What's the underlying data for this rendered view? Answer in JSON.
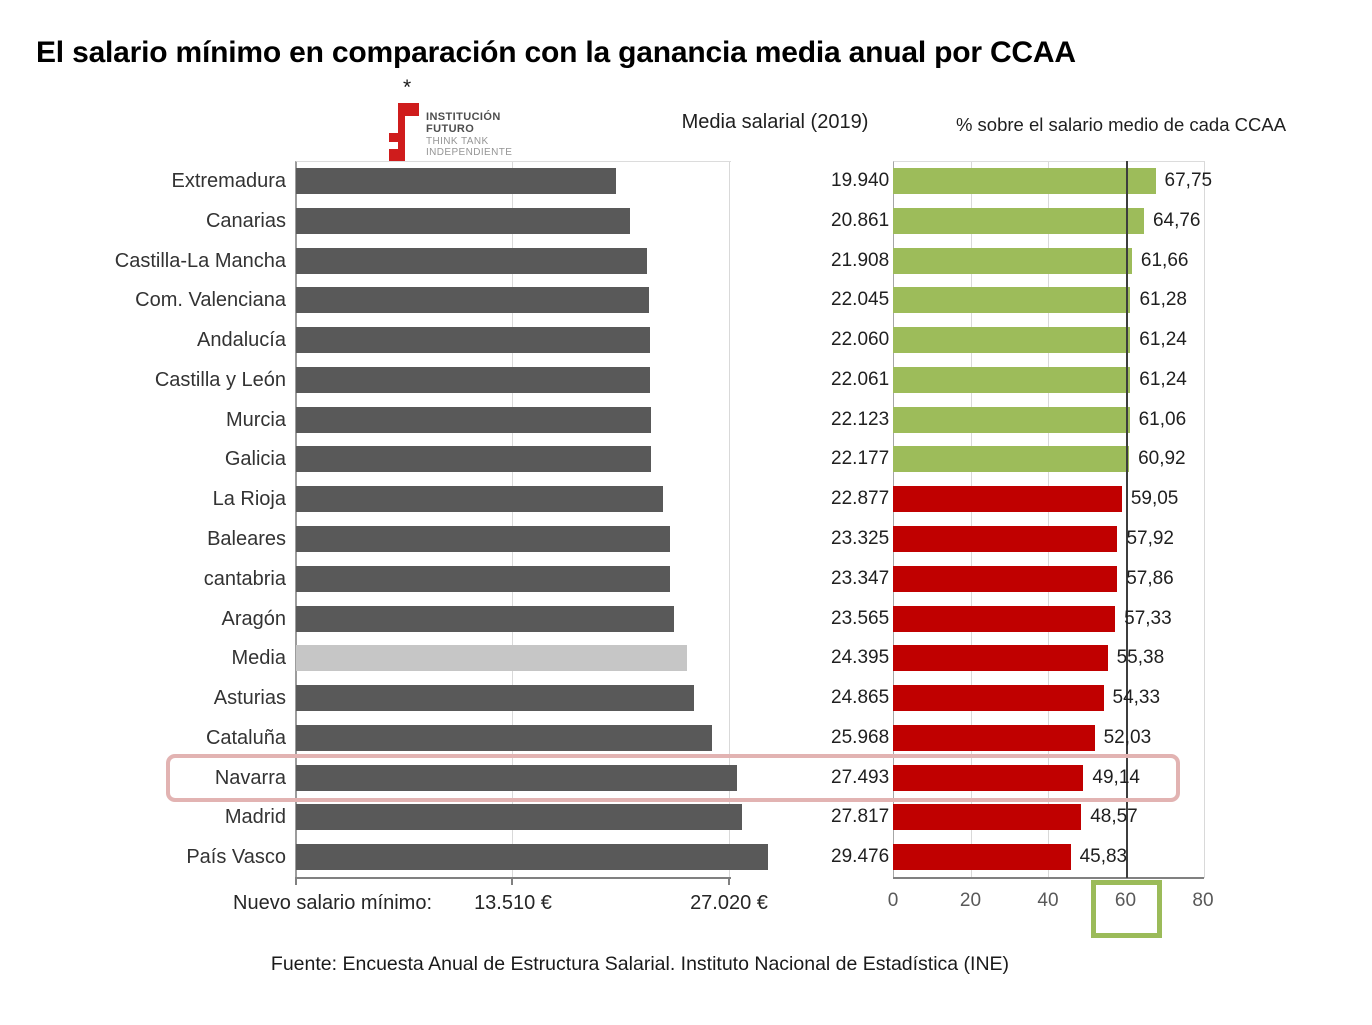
{
  "title": "El salario mínimo en comparación con la ganancia media anual por CCAA",
  "logo": {
    "asterisk": "*",
    "lines": [
      "INSTITUCIÓN",
      "FUTURO",
      "THINK TANK",
      "INDEPENDIENTE"
    ]
  },
  "headers": {
    "salary": "Media salarial (2019)",
    "percent": "% sobre el salario medio de cada CCAA"
  },
  "chart_data": {
    "type": "bar",
    "orientation": "horizontal",
    "categories": [
      "Extremadura",
      "Canarias",
      "Castilla-La Mancha",
      "Com. Valenciana",
      "Andalucía",
      "Castilla y León",
      "Murcia",
      "Galicia",
      "La Rioja",
      "Baleares",
      "cantabria",
      "Aragón",
      "Media",
      "Asturias",
      "Cataluña",
      "Navarra",
      "Madrid",
      "País Vasco"
    ],
    "series": [
      {
        "name": "Media salarial (2019)",
        "unit": "€",
        "values": [
          19940,
          20861,
          21908,
          22045,
          22060,
          22061,
          22123,
          22177,
          22877,
          23325,
          23347,
          23565,
          24395,
          24865,
          25968,
          27493,
          27817,
          29476
        ]
      },
      {
        "name": "% sobre el salario medio de cada CCAA",
        "unit": "%",
        "values": [
          67.75,
          64.76,
          61.66,
          61.28,
          61.24,
          61.24,
          61.06,
          60.92,
          59.05,
          57.92,
          57.86,
          57.33,
          55.38,
          54.33,
          52.03,
          49.14,
          48.57,
          45.83
        ]
      }
    ],
    "salary_display": [
      "19.940 €",
      "20.861 €",
      "21.908 €",
      "22.045 €",
      "22.060 €",
      "22.061 €",
      "22.123 €",
      "22.177 €",
      "22.877 €",
      "23.325 €",
      "23.347 €",
      "23.565 €",
      "24.395 €",
      "24.865 €",
      "25.968 €",
      "27.493 €",
      "27.817 €",
      "29.476 €"
    ],
    "percent_display": [
      "67,75",
      "64,76",
      "61,66",
      "61,28",
      "61,24",
      "61,24",
      "61,06",
      "60,92",
      "59,05",
      "57,92",
      "57,86",
      "57,33",
      "55,38",
      "54,33",
      "52,03",
      "49,14",
      "48,57",
      "45,83"
    ],
    "highlighted_category": "Navarra",
    "left_axis": {
      "caption": "Nuevo salario mínimo:",
      "tick_labels": [
        "13.510 €",
        "27.020 €"
      ],
      "tick_values": [
        13510,
        27020
      ],
      "max": 27020
    },
    "right_axis": {
      "tick_labels": [
        "0",
        "20",
        "40",
        "60",
        "80"
      ],
      "tick_values": [
        0,
        20,
        40,
        60,
        80
      ],
      "max": 80,
      "threshold": 60
    },
    "grid": true,
    "colors": {
      "salary_bar": "#595959",
      "media_bar": "#c6c6c6",
      "pct_above_threshold": "#9dbc5a",
      "pct_below_threshold": "#c00000",
      "highlight_box": "#e2b3b2",
      "threshold_box": "#9bbb59",
      "threshold_line": "#3d3d3d",
      "logo_red": "#cf1c1c"
    }
  },
  "footer": "Fuente: Encuesta Anual de Estructura Salarial. Instituto Nacional de Estadística (INE)"
}
